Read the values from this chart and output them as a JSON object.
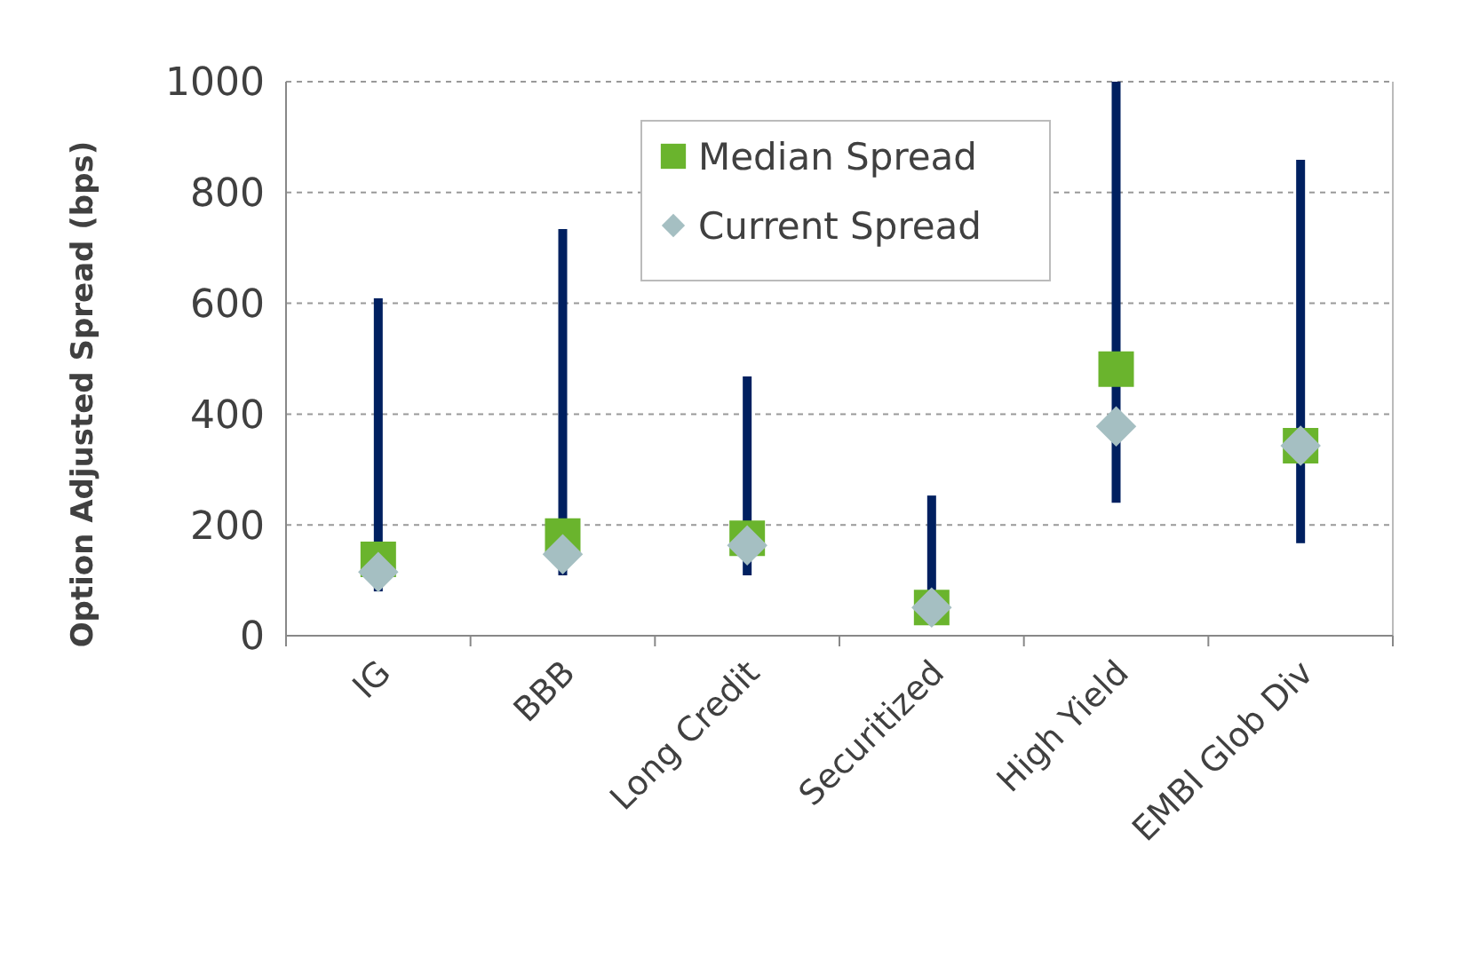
{
  "chart_data": {
    "type": "scatter",
    "ylabel": "Option Adjusted Spread (bps)",
    "categories": [
      "IG",
      "BBB",
      "Long Credit",
      "Securitized",
      "High Yield",
      "EMBI Glob Div"
    ],
    "series": [
      {
        "type": "bar",
        "color": "#002060",
        "base": [
          80,
          109,
          109,
          30,
          240,
          167
        ],
        "values": [
          529,
          625,
          359,
          223,
          760,
          692
        ]
      },
      {
        "name": "Median Spread",
        "color": "#6ab42d",
        "marker": "square",
        "x": [
          "IG",
          "BBB",
          "Long Credit",
          "Securitized",
          "High Yield",
          "EMBI Glob Div"
        ],
        "values": [
          138,
          180,
          176,
          51,
          481,
          343
        ]
      },
      {
        "name": "Current Spread",
        "color": "#a5bfc2",
        "marker": "diamond",
        "x": [
          "IG",
          "BBB",
          "Long Credit",
          "Securitized",
          "High Yield",
          "EMBI Glob Div"
        ],
        "values": [
          115,
          147,
          163,
          51,
          378,
          343
        ]
      }
    ],
    "ylim": [
      0,
      1000
    ],
    "yticks": [
      0,
      200,
      400,
      600,
      800,
      1000
    ],
    "grid": "y",
    "legend": "top"
  }
}
